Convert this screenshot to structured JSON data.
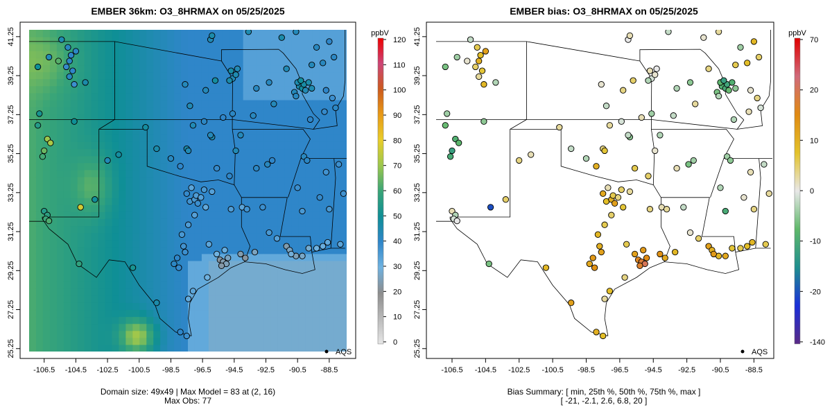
{
  "left_panel": {
    "title": "EMBER 36km: O3_8HRMAX on 05/25/2025",
    "colorbar": {
      "unit": "ppbV",
      "min": 0,
      "max": 120,
      "ticks": [
        "0",
        "10",
        "20",
        "30",
        "40",
        "50",
        "60",
        "70",
        "80",
        "90",
        "100",
        "110",
        "120"
      ],
      "tick_values": [
        0,
        10,
        20,
        30,
        40,
        50,
        60,
        70,
        80,
        90,
        100,
        110,
        120
      ],
      "stops": [
        "#e6e6e6",
        "#b9b9b9",
        "#8d8d8d",
        "#6fb2e0",
        "#2f86c9",
        "#0f8f96",
        "#3aa577",
        "#9cc74d",
        "#e9cd2a",
        "#e89a16",
        "#cc5a1e",
        "#cc4577",
        "#ee0000"
      ]
    },
    "footer_line1": "Domain size: 49x49 | Max Model = 83 at (2, 16)",
    "footer_line2": "Max Obs: 77",
    "legend_label": "AQS"
  },
  "right_panel": {
    "title": "EMBER bias: O3_8HRMAX on 05/25/2025",
    "colorbar": {
      "unit": "ppbV",
      "ticks": [
        "-140",
        "-20",
        "-10",
        "0",
        "10",
        "20",
        "70"
      ],
      "tick_values": [
        -140,
        -20,
        -10,
        0,
        10,
        20,
        70
      ],
      "stops": [
        "#5a2a86",
        "#1a2fd9",
        "#1f8f8f",
        "#5fb86a",
        "#e8e8e8",
        "#e3c22a",
        "#e08a12",
        "#d06a7a",
        "#e00000"
      ]
    },
    "footer_line1": "Bias Summary: [ min, 25th %, 50th %, 75th %, max ]",
    "footer_line2": "[ -21,   -2.1,   2.6,   6.8,   20 ]",
    "legend_label": "AQS"
  },
  "axes": {
    "x_ticks": [
      "-106.5",
      "-104.5",
      "-102.5",
      "-100.5",
      "-98.5",
      "-96.5",
      "-94.5",
      "-92.5",
      "-90.5",
      "-88.5"
    ],
    "x_values": [
      -106.5,
      -104.5,
      -102.5,
      -100.5,
      -98.5,
      -96.5,
      -94.5,
      -92.5,
      -90.5,
      -88.5
    ],
    "y_ticks": [
      "25.25",
      "27.25",
      "29.25",
      "31.25",
      "33.25",
      "35.25",
      "37.25",
      "39.25",
      "41.25"
    ],
    "y_values": [
      25.25,
      27.25,
      29.25,
      31.25,
      33.25,
      35.25,
      37.25,
      39.25,
      41.25
    ],
    "lon_range": [
      -107.45,
      -87.4
    ],
    "lat_range": [
      25.1,
      41.6
    ]
  },
  "monitors": [
    {
      "lon": -106.2,
      "lat": 40.2,
      "obs": 44,
      "bias": -4
    },
    {
      "lon": -105.0,
      "lat": 40.7,
      "obs": 42,
      "bias": 6
    },
    {
      "lon": -104.8,
      "lat": 40.3,
      "obs": 40,
      "bias": 8
    },
    {
      "lon": -104.9,
      "lat": 40.0,
      "obs": 41,
      "bias": 10
    },
    {
      "lon": -105.1,
      "lat": 39.7,
      "obs": 39,
      "bias": 5
    },
    {
      "lon": -104.7,
      "lat": 39.5,
      "obs": 40,
      "bias": 7
    },
    {
      "lon": -104.9,
      "lat": 39.2,
      "obs": 42,
      "bias": 3
    },
    {
      "lon": -104.6,
      "lat": 38.8,
      "obs": 38,
      "bias": 9
    },
    {
      "lon": -106.9,
      "lat": 39.7,
      "obs": 50,
      "bias": -6
    },
    {
      "lon": -105.6,
      "lat": 40.0,
      "obs": 63,
      "bias": 1
    },
    {
      "lon": -104.5,
      "lat": 40.5,
      "obs": 41,
      "bias": 12
    },
    {
      "lon": -105.4,
      "lat": 41.1,
      "obs": 45,
      "bias": -2
    },
    {
      "lon": -106.3,
      "lat": 36.0,
      "obs": 70,
      "bias": -9
    },
    {
      "lon": -106.1,
      "lat": 35.8,
      "obs": 72,
      "bias": -8
    },
    {
      "lon": -106.5,
      "lat": 35.4,
      "obs": 65,
      "bias": -12
    },
    {
      "lon": -106.6,
      "lat": 35.1,
      "obs": 61,
      "bias": -10
    },
    {
      "lon": -106.8,
      "lat": 37.3,
      "obs": 52,
      "bias": -4
    },
    {
      "lon": -106.9,
      "lat": 36.7,
      "obs": 55,
      "bias": -7
    },
    {
      "lon": -104.6,
      "lat": 36.9,
      "obs": 50,
      "bias": -5
    },
    {
      "lon": -106.5,
      "lat": 32.3,
      "obs": 55,
      "bias": 2
    },
    {
      "lon": -106.3,
      "lat": 32.1,
      "obs": 57,
      "bias": -3
    },
    {
      "lon": -106.4,
      "lat": 31.9,
      "obs": 60,
      "bias": -1
    },
    {
      "lon": -106.2,
      "lat": 31.8,
      "obs": 62,
      "bias": 0
    },
    {
      "lon": -104.2,
      "lat": 32.5,
      "obs": 77,
      "bias": -21
    },
    {
      "lon": -103.3,
      "lat": 32.9,
      "obs": 49,
      "bias": 5
    },
    {
      "lon": -103.9,
      "lat": 38.9,
      "obs": 46,
      "bias": -3
    },
    {
      "lon": -102.5,
      "lat": 34.9,
      "obs": 44,
      "bias": 4
    },
    {
      "lon": -101.8,
      "lat": 35.2,
      "obs": 48,
      "bias": 2
    },
    {
      "lon": -104.3,
      "lat": 29.6,
      "obs": 58,
      "bias": -6
    },
    {
      "lon": -100.9,
      "lat": 29.4,
      "obs": 52,
      "bias": 9
    },
    {
      "lon": -99.4,
      "lat": 27.6,
      "obs": 46,
      "bias": 12
    },
    {
      "lon": -97.9,
      "lat": 26.1,
      "obs": 40,
      "bias": 10
    },
    {
      "lon": -97.5,
      "lat": 25.9,
      "obs": 38,
      "bias": 8
    },
    {
      "lon": -98.1,
      "lat": 29.9,
      "obs": 40,
      "bias": 13
    },
    {
      "lon": -98.3,
      "lat": 29.6,
      "obs": 41,
      "bias": 11
    },
    {
      "lon": -98.0,
      "lat": 29.4,
      "obs": 39,
      "bias": 14
    },
    {
      "lon": -97.6,
      "lat": 30.2,
      "obs": 38,
      "bias": 12
    },
    {
      "lon": -97.7,
      "lat": 30.5,
      "obs": 37,
      "bias": 10
    },
    {
      "lon": -97.8,
      "lat": 31.1,
      "obs": 36,
      "bias": 9
    },
    {
      "lon": -97.4,
      "lat": 31.6,
      "obs": 35,
      "bias": 6
    },
    {
      "lon": -97.0,
      "lat": 32.1,
      "obs": 34,
      "bias": 5
    },
    {
      "lon": -97.3,
      "lat": 32.8,
      "obs": 37,
      "bias": 8
    },
    {
      "lon": -97.0,
      "lat": 32.9,
      "obs": 36,
      "bias": 10
    },
    {
      "lon": -96.8,
      "lat": 32.7,
      "obs": 38,
      "bias": 12
    },
    {
      "lon": -96.9,
      "lat": 33.1,
      "obs": 35,
      "bias": 6
    },
    {
      "lon": -96.6,
      "lat": 33.0,
      "obs": 34,
      "bias": 4
    },
    {
      "lon": -97.5,
      "lat": 33.2,
      "obs": 39,
      "bias": 11
    },
    {
      "lon": -97.2,
      "lat": 33.5,
      "obs": 33,
      "bias": 2
    },
    {
      "lon": -96.4,
      "lat": 33.4,
      "obs": 36,
      "bias": 5
    },
    {
      "lon": -96.3,
      "lat": 32.5,
      "obs": 32,
      "bias": 7
    },
    {
      "lon": -95.9,
      "lat": 33.3,
      "obs": 34,
      "bias": 3
    },
    {
      "lon": -95.4,
      "lat": 29.8,
      "obs": 22,
      "bias": 16
    },
    {
      "lon": -95.2,
      "lat": 29.7,
      "obs": 24,
      "bias": 18
    },
    {
      "lon": -95.0,
      "lat": 29.6,
      "obs": 25,
      "bias": 20
    },
    {
      "lon": -95.3,
      "lat": 29.5,
      "obs": 23,
      "bias": 17
    },
    {
      "lon": -94.9,
      "lat": 29.9,
      "obs": 26,
      "bias": 15
    },
    {
      "lon": -95.6,
      "lat": 30.1,
      "obs": 30,
      "bias": 12
    },
    {
      "lon": -95.1,
      "lat": 30.3,
      "obs": 31,
      "bias": 13
    },
    {
      "lon": -94.1,
      "lat": 30.1,
      "obs": 24,
      "bias": 14
    },
    {
      "lon": -93.8,
      "lat": 29.9,
      "obs": 22,
      "bias": 11
    },
    {
      "lon": -93.2,
      "lat": 30.2,
      "obs": 26,
      "bias": 9
    },
    {
      "lon": -94.7,
      "lat": 32.4,
      "obs": 35,
      "bias": 4
    },
    {
      "lon": -94.0,
      "lat": 32.5,
      "obs": 33,
      "bias": 2
    },
    {
      "lon": -96.1,
      "lat": 30.6,
      "obs": 33,
      "bias": 6
    },
    {
      "lon": -97.4,
      "lat": 27.8,
      "obs": 32,
      "bias": 3
    },
    {
      "lon": -97.1,
      "lat": 28.2,
      "obs": 33,
      "bias": 8
    },
    {
      "lon": -96.2,
      "lat": 28.9,
      "obs": 30,
      "bias": 4
    },
    {
      "lon": -91.2,
      "lat": 30.5,
      "obs": 24,
      "bias": 12
    },
    {
      "lon": -91.0,
      "lat": 30.3,
      "obs": 26,
      "bias": 10
    },
    {
      "lon": -90.6,
      "lat": 30.0,
      "obs": 25,
      "bias": 9
    },
    {
      "lon": -90.2,
      "lat": 30.0,
      "obs": 27,
      "bias": 11
    },
    {
      "lon": -89.8,
      "lat": 30.4,
      "obs": 28,
      "bias": 7
    },
    {
      "lon": -90.9,
      "lat": 30.1,
      "obs": 29,
      "bias": 13
    },
    {
      "lon": -89.3,
      "lat": 30.4,
      "obs": 30,
      "bias": 6
    },
    {
      "lon": -88.9,
      "lat": 30.5,
      "obs": 31,
      "bias": 8
    },
    {
      "lon": -88.6,
      "lat": 30.7,
      "obs": 32,
      "bias": 9
    },
    {
      "lon": -91.8,
      "lat": 30.9,
      "obs": 34,
      "bias": 5
    },
    {
      "lon": -92.3,
      "lat": 31.2,
      "obs": 36,
      "bias": 1
    },
    {
      "lon": -92.7,
      "lat": 32.5,
      "obs": 38,
      "bias": -2
    },
    {
      "lon": -93.7,
      "lat": 32.4,
      "obs": 37,
      "bias": 3
    },
    {
      "lon": -92.4,
      "lat": 34.7,
      "obs": 42,
      "bias": -6
    },
    {
      "lon": -92.1,
      "lat": 34.9,
      "obs": 40,
      "bias": -4
    },
    {
      "lon": -93.1,
      "lat": 34.5,
      "obs": 41,
      "bias": 2
    },
    {
      "lon": -94.1,
      "lat": 36.2,
      "obs": 43,
      "bias": -3
    },
    {
      "lon": -94.4,
      "lat": 35.4,
      "obs": 44,
      "bias": 1
    },
    {
      "lon": -95.9,
      "lat": 36.1,
      "obs": 45,
      "bias": -5
    },
    {
      "lon": -96.0,
      "lat": 36.2,
      "obs": 43,
      "bias": -2
    },
    {
      "lon": -97.5,
      "lat": 35.5,
      "obs": 46,
      "bias": 4
    },
    {
      "lon": -97.4,
      "lat": 35.4,
      "obs": 44,
      "bias": 7
    },
    {
      "lon": -98.5,
      "lat": 35.0,
      "obs": 42,
      "bias": -3
    },
    {
      "lon": -97.9,
      "lat": 34.6,
      "obs": 40,
      "bias": 10
    },
    {
      "lon": -95.6,
      "lat": 34.5,
      "obs": 39,
      "bias": 6
    },
    {
      "lon": -94.8,
      "lat": 34.1,
      "obs": 40,
      "bias": 5
    },
    {
      "lon": -97.1,
      "lat": 36.7,
      "obs": 44,
      "bias": 3
    },
    {
      "lon": -96.4,
      "lat": 36.9,
      "obs": 41,
      "bias": -1
    },
    {
      "lon": -95.2,
      "lat": 37.1,
      "obs": 40,
      "bias": 2
    },
    {
      "lon": -94.6,
      "lat": 37.3,
      "obs": 41,
      "bias": -4
    },
    {
      "lon": -93.3,
      "lat": 37.2,
      "obs": 42,
      "bias": -2
    },
    {
      "lon": -92.0,
      "lat": 37.8,
      "obs": 43,
      "bias": 3
    },
    {
      "lon": -94.6,
      "lat": 39.1,
      "obs": 44,
      "bias": -1
    },
    {
      "lon": -94.4,
      "lat": 39.3,
      "obs": 45,
      "bias": 1
    },
    {
      "lon": -94.8,
      "lat": 39.0,
      "obs": 46,
      "bias": -3
    },
    {
      "lon": -94.7,
      "lat": 39.5,
      "obs": 47,
      "bias": 2
    },
    {
      "lon": -94.3,
      "lat": 39.6,
      "obs": 44,
      "bias": 0
    },
    {
      "lon": -95.7,
      "lat": 39.0,
      "obs": 48,
      "bias": 5
    },
    {
      "lon": -97.3,
      "lat": 37.7,
      "obs": 44,
      "bias": -2
    },
    {
      "lon": -96.3,
      "lat": 38.5,
      "obs": 43,
      "bias": 4
    },
    {
      "lon": -92.3,
      "lat": 38.9,
      "obs": 42,
      "bias": -5
    },
    {
      "lon": -90.4,
      "lat": 38.7,
      "obs": 46,
      "bias": -9
    },
    {
      "lon": -90.2,
      "lat": 38.6,
      "obs": 48,
      "bias": -10
    },
    {
      "lon": -90.1,
      "lat": 38.8,
      "obs": 47,
      "bias": -11
    },
    {
      "lon": -90.5,
      "lat": 38.9,
      "obs": 45,
      "bias": -8
    },
    {
      "lon": -90.3,
      "lat": 39.0,
      "obs": 49,
      "bias": -12
    },
    {
      "lon": -90.0,
      "lat": 38.5,
      "obs": 44,
      "bias": -7
    },
    {
      "lon": -90.7,
      "lat": 38.4,
      "obs": 43,
      "bias": -6
    },
    {
      "lon": -89.8,
      "lat": 38.9,
      "obs": 46,
      "bias": -9
    },
    {
      "lon": -89.6,
      "lat": 38.6,
      "obs": 45,
      "bias": -5
    },
    {
      "lon": -90.6,
      "lat": 38.2,
      "obs": 42,
      "bias": -3
    },
    {
      "lon": -91.2,
      "lat": 39.6,
      "obs": 44,
      "bias": 4
    },
    {
      "lon": -89.6,
      "lat": 39.8,
      "obs": 43,
      "bias": 6
    },
    {
      "lon": -88.9,
      "lat": 39.9,
      "obs": 42,
      "bias": 8
    },
    {
      "lon": -88.2,
      "lat": 40.2,
      "obs": 41,
      "bias": 5
    },
    {
      "lon": -88.5,
      "lat": 41.0,
      "obs": 40,
      "bias": 9
    },
    {
      "lon": -89.3,
      "lat": 40.7,
      "obs": 42,
      "bias": -4
    },
    {
      "lon": -90.6,
      "lat": 41.5,
      "obs": 43,
      "bias": 3
    },
    {
      "lon": -89.7,
      "lat": 37.0,
      "obs": 40,
      "bias": -3
    },
    {
      "lon": -88.8,
      "lat": 37.4,
      "obs": 39,
      "bias": 2
    },
    {
      "lon": -88.3,
      "lat": 38.1,
      "obs": 38,
      "bias": 4
    },
    {
      "lon": -88.1,
      "lat": 37.6,
      "obs": 41,
      "bias": -1
    },
    {
      "lon": -88.7,
      "lat": 38.5,
      "obs": 40,
      "bias": 1
    },
    {
      "lon": -90.1,
      "lat": 35.1,
      "obs": 42,
      "bias": -4
    },
    {
      "lon": -89.9,
      "lat": 34.9,
      "obs": 41,
      "bias": -5
    },
    {
      "lon": -90.2,
      "lat": 32.3,
      "obs": 36,
      "bias": -10
    },
    {
      "lon": -88.7,
      "lat": 34.3,
      "obs": 37,
      "bias": 2
    },
    {
      "lon": -90.5,
      "lat": 33.5,
      "obs": 38,
      "bias": -3
    },
    {
      "lon": -89.1,
      "lat": 33.0,
      "obs": 39,
      "bias": 1
    },
    {
      "lon": -88.5,
      "lat": 32.4,
      "obs": 36,
      "bias": 4
    },
    {
      "lon": -87.9,
      "lat": 34.7,
      "obs": 38,
      "bias": -2
    },
    {
      "lon": -87.6,
      "lat": 33.2,
      "obs": 37,
      "bias": 3
    },
    {
      "lon": -87.8,
      "lat": 30.6,
      "obs": 33,
      "bias": 6
    },
    {
      "lon": -91.5,
      "lat": 41.2,
      "obs": 46,
      "bias": 1
    },
    {
      "lon": -93.6,
      "lat": 41.5,
      "obs": 45,
      "bias": -2
    },
    {
      "lon": -96.0,
      "lat": 41.1,
      "obs": 44,
      "bias": 0
    },
    {
      "lon": -95.9,
      "lat": 41.3,
      "obs": 46,
      "bias": 2
    },
    {
      "lon": -93.1,
      "lat": 38.6,
      "obs": 42,
      "bias": -3
    },
    {
      "lon": -97.6,
      "lat": 38.8,
      "obs": 43,
      "bias": 1
    },
    {
      "lon": -100.1,
      "lat": 36.6,
      "obs": 48,
      "bias": 3
    },
    {
      "lon": -99.4,
      "lat": 35.5,
      "obs": 46,
      "bias": -2
    }
  ]
}
